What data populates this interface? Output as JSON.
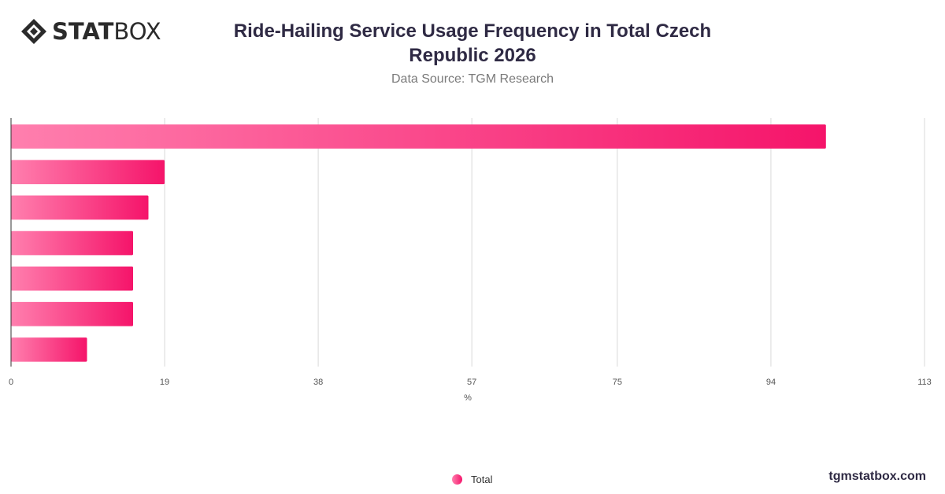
{
  "logo": {
    "text_bold": "STAT",
    "text_light": "BOX"
  },
  "title": "Ride-Hailing Service Usage Frequency in Total Czech Republic 2026",
  "subtitle": "Data Source: TGM Research",
  "footer": "tgmstatbox.com",
  "legend": {
    "label": "Total"
  },
  "colors": {
    "bar_start": "#ff7fae",
    "bar_end": "#f5146a",
    "grid": "#d9d9d9",
    "axis": "#333333"
  },
  "chart_data": {
    "type": "bar",
    "orientation": "horizontal",
    "categories": [
      "",
      "",
      "",
      "",
      "",
      "",
      ""
    ],
    "series": [
      {
        "name": "Total",
        "values": [
          100.8,
          19,
          17,
          15.1,
          15.1,
          15.1,
          9.4
        ]
      }
    ],
    "xlim": [
      0,
      113
    ],
    "xticks": [
      0,
      19,
      38,
      57,
      75,
      94,
      113
    ],
    "xlabel": "%",
    "grid": true,
    "legend_position": "bottom-center"
  }
}
